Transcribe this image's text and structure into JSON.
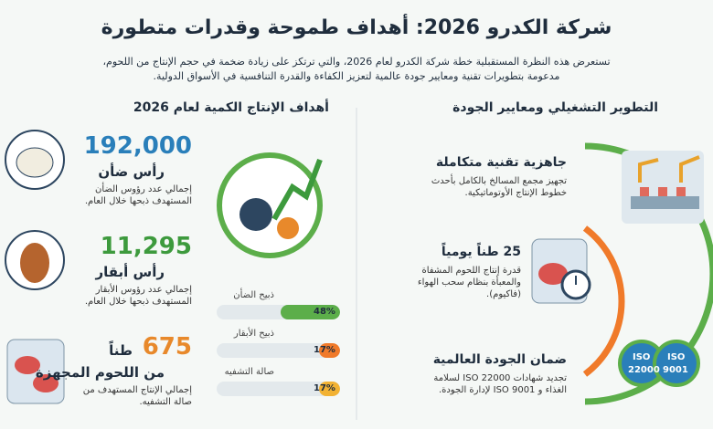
{
  "header": {
    "title": "شركة الكدرو 2026: أهداف طموحة وقدرات متطورة",
    "subtitle_lines": [
      "تستعرض هذه النظرة المستقبلية خطة شركة الكدرو لعام 2026، والتي ترتكز على زيادة ضخمة في حجم الإنتاج من اللحوم،",
      "مدعومة بتطويرات تقنية ومعايير جودة عالمية لتعزيز الكفاءة والقدرة التنافسية في الأسواق الدولية."
    ]
  },
  "left": {
    "title": "أهداف الإنتاج الكمية لعام 2026",
    "items": [
      {
        "number": "192,000",
        "label": "رأس ضأن",
        "desc": "إجمالي عدد رؤوس الضأن المستهدف ذبحها خلال العام.",
        "color": "#2a7fba"
      },
      {
        "number": "11,295",
        "label": "رأس أبقار",
        "desc": "إجمالي عدد رؤوس الأبقار المستهدف ذبحها خلال العام.",
        "color": "#3d9a3d"
      },
      {
        "number": "675",
        "unit": "طناً",
        "label": "من اللحوم المجهزة",
        "desc": "إجمالي الإنتاج المستهدف من صالة التشفيه.",
        "color": "#e8892b"
      }
    ],
    "bars": [
      {
        "label": "ذبيح الضأن",
        "value": 48,
        "value_label": "48%",
        "color": "#5cae4a"
      },
      {
        "label": "ذبيح الأبقار",
        "value": 17,
        "value_label": "17%",
        "color": "#f07a2a"
      },
      {
        "label": "صالة التشفيه",
        "value": 17,
        "value_label": "17%",
        "color": "#f2b233"
      }
    ]
  },
  "right": {
    "title": "التطوير التشغيلي ومعايير الجودة",
    "items": [
      {
        "heading": "جاهزية تقنية متكاملة",
        "desc": "تجهيز مجمع المسالخ بالكامل بأحدث خطوط الإنتاج الأوتوماتيكية."
      },
      {
        "heading": "25 طناً يومياً",
        "desc": "قدرة إنتاج اللحوم المشفاة والمعبأة بنظام سحب الهواء (فاكيوم)."
      },
      {
        "heading": "ضمان الجودة العالمية",
        "desc": "تجديد شهادات ISO 22000 لسلامة الغذاء و ISO 9001 لإدارة الجودة."
      }
    ],
    "badges": [
      {
        "top": "ISO",
        "bottom": "22000"
      },
      {
        "top": "ISO",
        "bottom": "9001"
      }
    ]
  }
}
